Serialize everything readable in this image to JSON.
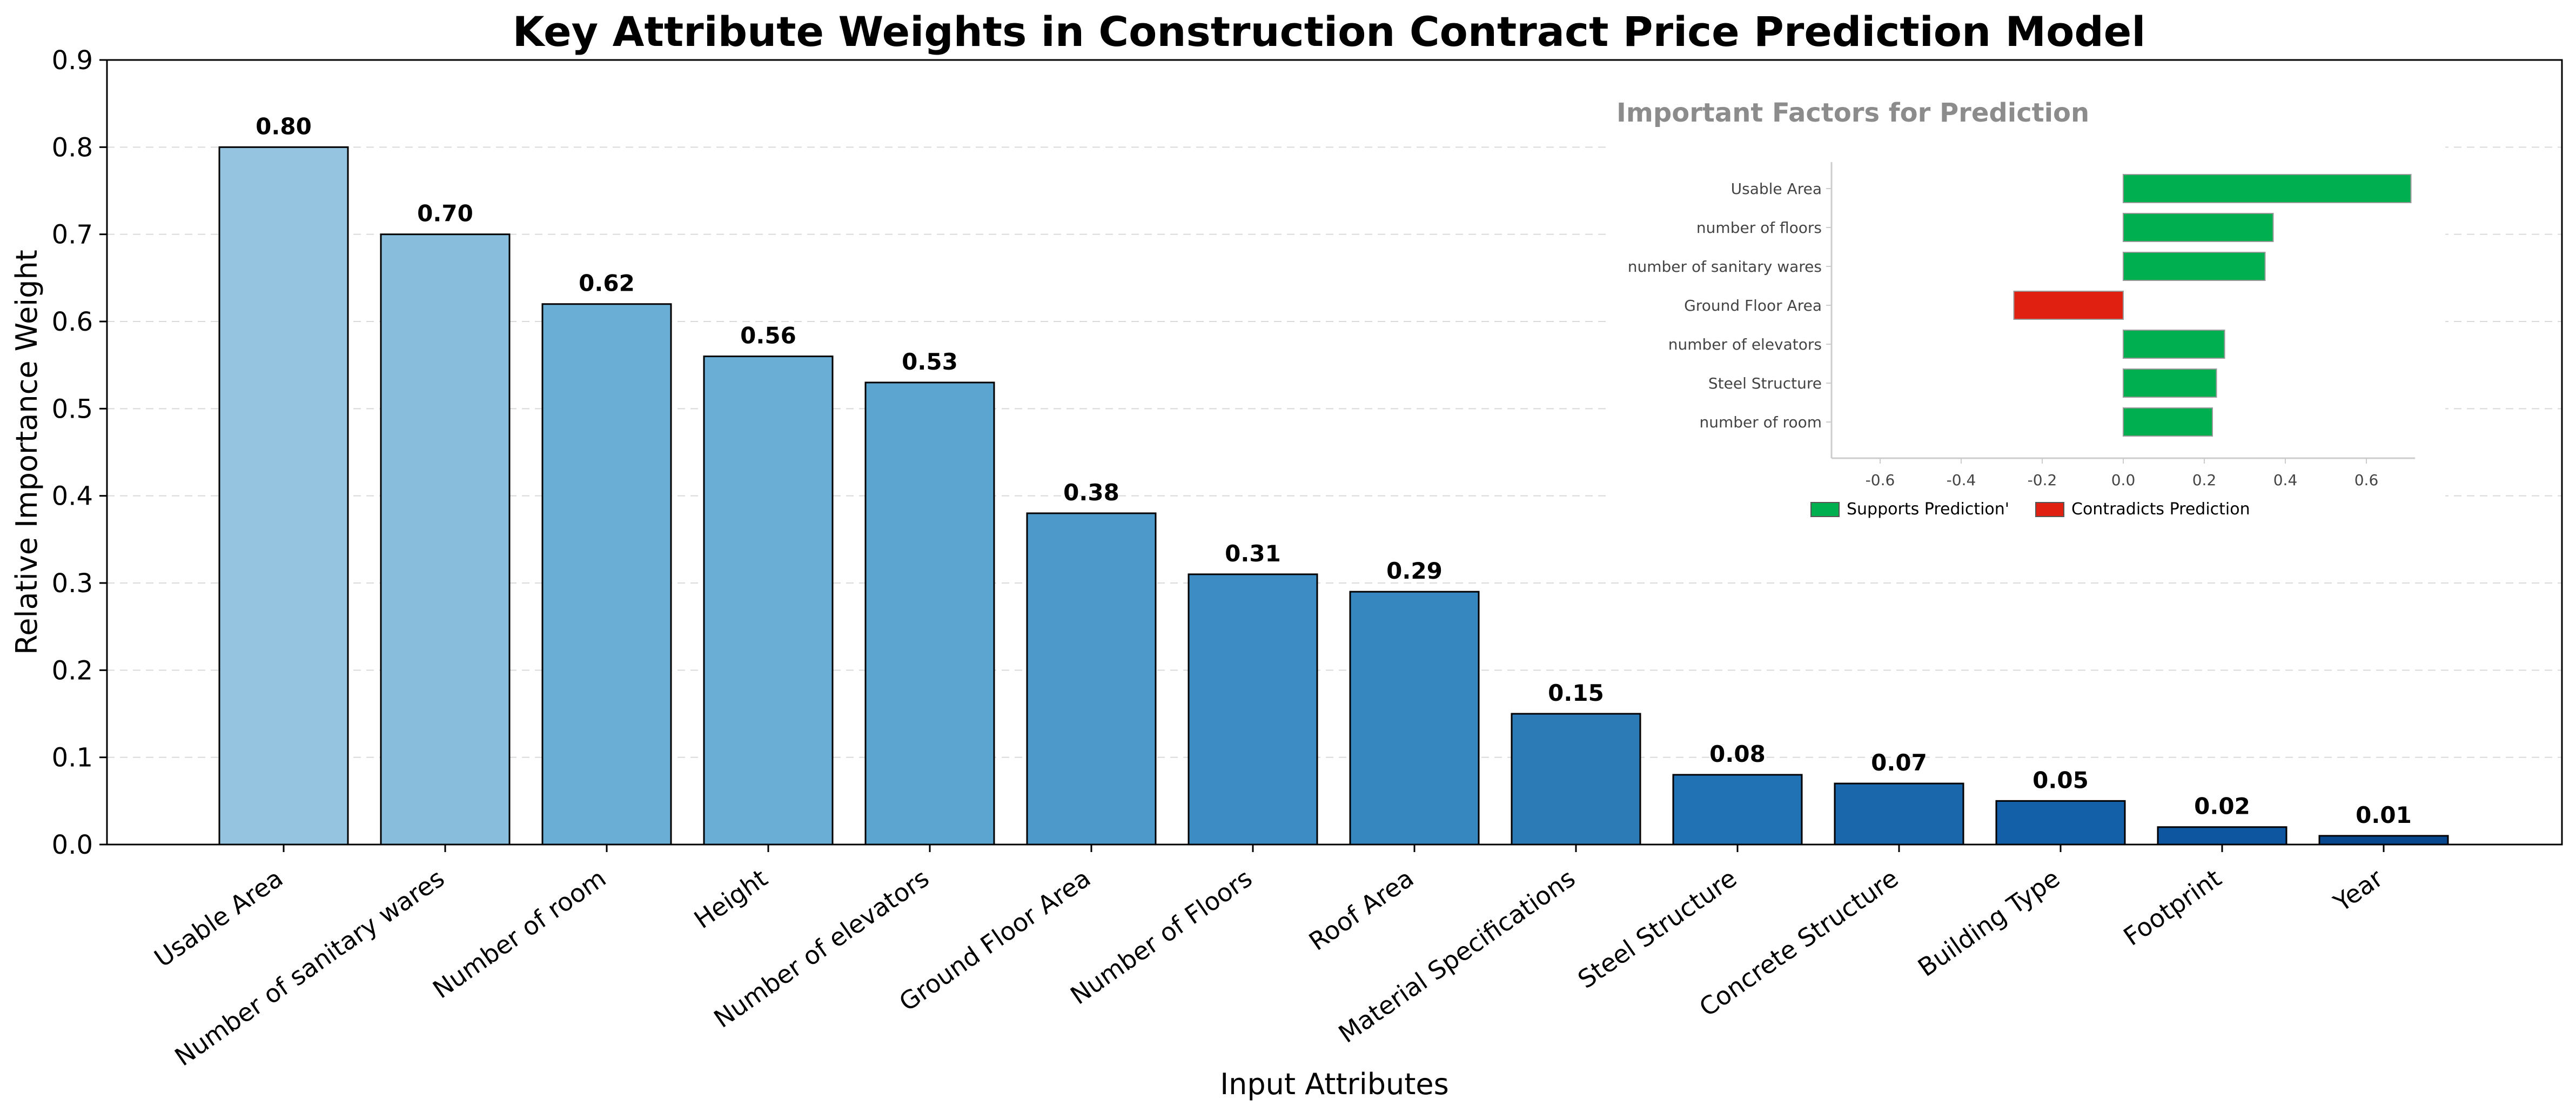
{
  "chart_data": [
    {
      "type": "bar",
      "title": "Key Attribute Weights in Construction Contract Price Prediction Model",
      "xlabel": "Input Attributes",
      "ylabel": "Relative Importance Weight",
      "categories": [
        "Usable Area",
        "Number of sanitary wares",
        "Number of room",
        "Height",
        "Number of elevators",
        "Ground Floor Area",
        "Number of Floors",
        "Roof Area",
        "Material Specifications",
        "Steel Structure",
        "Concrete Structure",
        "Building Type",
        "Footprint",
        "Year"
      ],
      "values": [
        0.8,
        0.7,
        0.62,
        0.56,
        0.53,
        0.38,
        0.31,
        0.29,
        0.15,
        0.08,
        0.07,
        0.05,
        0.02,
        0.01
      ],
      "data_labels": [
        "0.80",
        "0.70",
        "0.62",
        "0.56",
        "0.53",
        "0.38",
        "0.31",
        "0.29",
        "0.15",
        "0.08",
        "0.07",
        "0.05",
        "0.02",
        "0.01"
      ],
      "ylim": [
        0,
        0.9
      ],
      "yticks": [
        "0.0",
        "0.1",
        "0.2",
        "0.3",
        "0.4",
        "0.5",
        "0.6",
        "0.7",
        "0.8",
        "0.9"
      ],
      "grid": true,
      "bar_colors": [
        "#94c4df",
        "#88bedc",
        "#6aaed6",
        "#6aaed6",
        "#5da5d1",
        "#4d99ca",
        "#3d8dc4",
        "#3686c0",
        "#2c7bb6",
        "#2171b5",
        "#1b67ab",
        "#1460a8",
        "#0e56a0",
        "#08478e"
      ]
    },
    {
      "type": "bar",
      "orientation": "horizontal",
      "title": "Important Factors for Prediction",
      "categories": [
        "Usable Area",
        "number of floors",
        "number of sanitary wares",
        "Ground Floor Area",
        "number of elevators",
        "Steel Structure",
        "number of room"
      ],
      "values": [
        0.71,
        0.37,
        0.35,
        -0.27,
        0.25,
        0.23,
        0.22
      ],
      "xlim": [
        -0.72,
        0.72
      ],
      "xticks": [
        "-0.6",
        "-0.4",
        "-0.2",
        "0.0",
        "0.2",
        "0.4",
        "0.6"
      ],
      "legend": [
        {
          "name": "Supports Prediction'",
          "color": "#00b050"
        },
        {
          "name": "Contradicts Prediction",
          "color": "#e02010"
        }
      ],
      "legend_position": "bottom"
    }
  ]
}
